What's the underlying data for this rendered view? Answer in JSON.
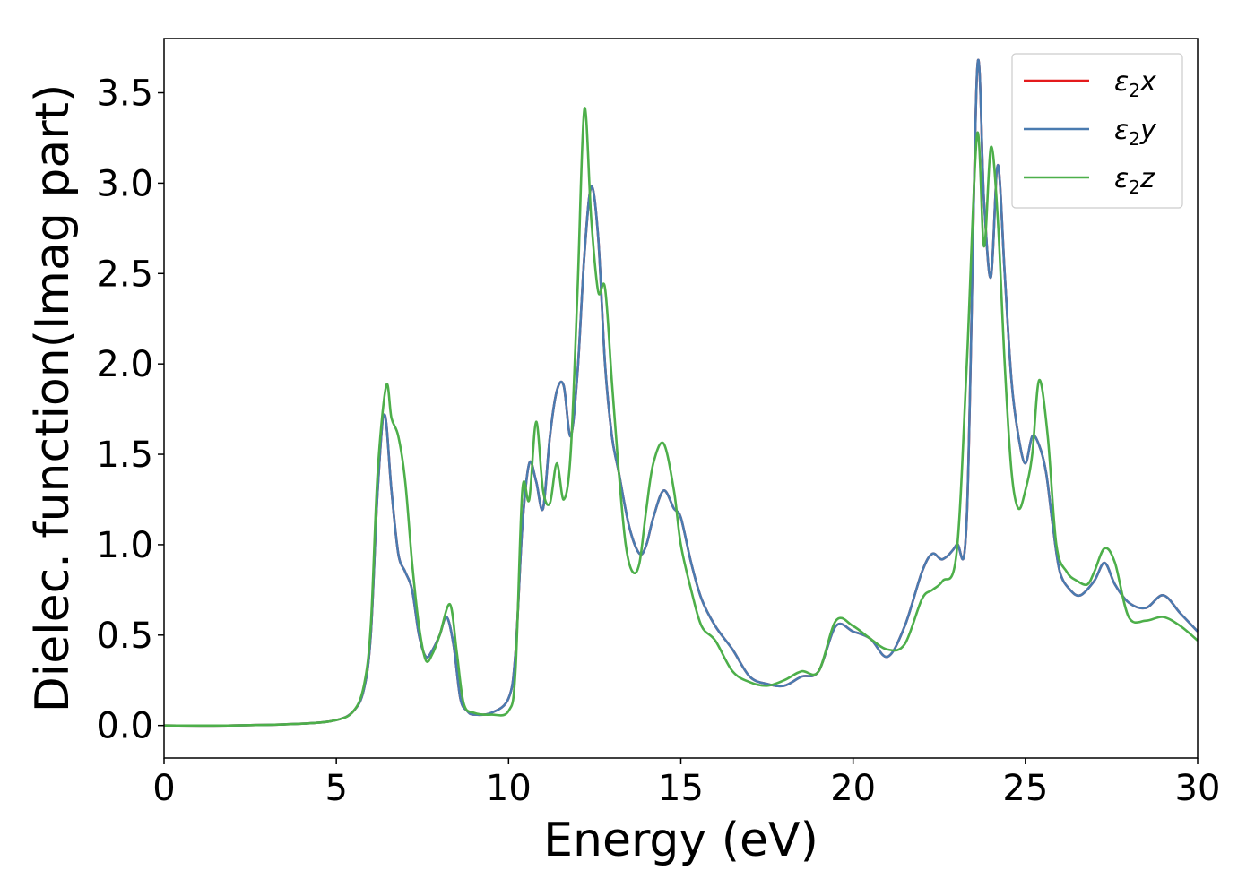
{
  "chart_data": {
    "type": "line",
    "xlabel": "Energy (eV)",
    "ylabel": "Dielec. function(Imag part)",
    "xlim": [
      0,
      30
    ],
    "ylim": [
      -0.18,
      3.8
    ],
    "xticks": [
      0,
      5,
      10,
      15,
      20,
      25,
      30
    ],
    "xtick_labels": [
      "0",
      "5",
      "10",
      "15",
      "20",
      "25",
      "30"
    ],
    "yticks": [
      0.0,
      0.5,
      1.0,
      1.5,
      2.0,
      2.5,
      3.0,
      3.5
    ],
    "ytick_labels": [
      "0.0",
      "0.5",
      "1.0",
      "1.5",
      "2.0",
      "2.5",
      "3.0",
      "3.5"
    ],
    "grid": false,
    "legend_position": "top-right",
    "series": [
      {
        "name": "ε2x",
        "symbol": "ε",
        "subscript": "2",
        "suffix": "x",
        "color": "#e41a1c",
        "x": [
          0,
          2,
          4,
          5,
          5.5,
          5.8,
          6.0,
          6.2,
          6.4,
          6.6,
          6.8,
          7.0,
          7.2,
          7.4,
          7.6,
          7.8,
          8.0,
          8.2,
          8.4,
          8.6,
          8.8,
          9.0,
          9.5,
          10.0,
          10.2,
          10.4,
          10.6,
          10.8,
          11.0,
          11.2,
          11.4,
          11.6,
          11.8,
          12.0,
          12.2,
          12.4,
          12.6,
          12.8,
          13.0,
          13.2,
          13.5,
          13.8,
          14.0,
          14.2,
          14.5,
          14.8,
          15.0,
          15.3,
          15.6,
          16.0,
          16.5,
          17.0,
          17.5,
          18.0,
          18.5,
          19.0,
          19.5,
          20.0,
          20.5,
          21.0,
          21.5,
          22.0,
          22.3,
          22.6,
          23.0,
          23.3,
          23.6,
          23.8,
          24.0,
          24.2,
          24.4,
          24.6,
          24.8,
          25.0,
          25.2,
          25.4,
          25.6,
          25.8,
          26.0,
          26.3,
          26.6,
          27.0,
          27.3,
          27.6,
          28.0,
          28.5,
          29.0,
          29.5,
          30.0
        ],
        "values": [
          0.0,
          0.0,
          0.01,
          0.03,
          0.08,
          0.2,
          0.5,
          1.3,
          1.72,
          1.3,
          0.95,
          0.85,
          0.75,
          0.5,
          0.38,
          0.42,
          0.5,
          0.6,
          0.45,
          0.15,
          0.08,
          0.06,
          0.07,
          0.15,
          0.4,
          1.1,
          1.45,
          1.35,
          1.2,
          1.6,
          1.85,
          1.88,
          1.6,
          1.95,
          2.6,
          2.98,
          2.7,
          2.0,
          1.6,
          1.4,
          1.1,
          0.95,
          1.0,
          1.15,
          1.3,
          1.2,
          1.15,
          0.9,
          0.7,
          0.55,
          0.42,
          0.27,
          0.23,
          0.22,
          0.27,
          0.3,
          0.55,
          0.52,
          0.48,
          0.38,
          0.55,
          0.85,
          0.95,
          0.92,
          1.0,
          1.15,
          3.62,
          2.9,
          2.48,
          3.1,
          2.5,
          1.9,
          1.6,
          1.45,
          1.6,
          1.55,
          1.4,
          1.1,
          0.85,
          0.75,
          0.72,
          0.8,
          0.9,
          0.78,
          0.68,
          0.65,
          0.72,
          0.62,
          0.52
        ]
      },
      {
        "name": "ε2y",
        "symbol": "ε",
        "subscript": "2",
        "suffix": "y",
        "color": "#4a7bb0",
        "x": [
          0,
          2,
          4,
          5,
          5.5,
          5.8,
          6.0,
          6.2,
          6.4,
          6.6,
          6.8,
          7.0,
          7.2,
          7.4,
          7.6,
          7.8,
          8.0,
          8.2,
          8.4,
          8.6,
          8.8,
          9.0,
          9.5,
          10.0,
          10.2,
          10.4,
          10.6,
          10.8,
          11.0,
          11.2,
          11.4,
          11.6,
          11.8,
          12.0,
          12.2,
          12.4,
          12.6,
          12.8,
          13.0,
          13.2,
          13.5,
          13.8,
          14.0,
          14.2,
          14.5,
          14.8,
          15.0,
          15.3,
          15.6,
          16.0,
          16.5,
          17.0,
          17.5,
          18.0,
          18.5,
          19.0,
          19.5,
          20.0,
          20.5,
          21.0,
          21.5,
          22.0,
          22.3,
          22.6,
          23.0,
          23.3,
          23.6,
          23.8,
          24.0,
          24.2,
          24.4,
          24.6,
          24.8,
          25.0,
          25.2,
          25.4,
          25.6,
          25.8,
          26.0,
          26.3,
          26.6,
          27.0,
          27.3,
          27.6,
          28.0,
          28.5,
          29.0,
          29.5,
          30.0
        ],
        "values": [
          0.0,
          0.0,
          0.01,
          0.03,
          0.08,
          0.2,
          0.5,
          1.3,
          1.72,
          1.3,
          0.95,
          0.85,
          0.75,
          0.5,
          0.38,
          0.42,
          0.5,
          0.6,
          0.45,
          0.15,
          0.08,
          0.06,
          0.07,
          0.15,
          0.4,
          1.1,
          1.45,
          1.35,
          1.2,
          1.6,
          1.85,
          1.88,
          1.6,
          1.95,
          2.6,
          2.98,
          2.7,
          2.0,
          1.6,
          1.4,
          1.1,
          0.95,
          1.0,
          1.15,
          1.3,
          1.2,
          1.15,
          0.9,
          0.7,
          0.55,
          0.42,
          0.27,
          0.23,
          0.22,
          0.27,
          0.3,
          0.55,
          0.52,
          0.48,
          0.38,
          0.55,
          0.85,
          0.95,
          0.92,
          1.0,
          1.15,
          3.62,
          2.9,
          2.48,
          3.1,
          2.5,
          1.9,
          1.6,
          1.45,
          1.6,
          1.55,
          1.4,
          1.1,
          0.85,
          0.75,
          0.72,
          0.8,
          0.9,
          0.78,
          0.68,
          0.65,
          0.72,
          0.62,
          0.52
        ]
      },
      {
        "name": "ε2z",
        "symbol": "ε",
        "subscript": "2",
        "suffix": "z",
        "color": "#4daf4a",
        "x": [
          0,
          2,
          4,
          5,
          5.5,
          5.8,
          6.0,
          6.2,
          6.45,
          6.6,
          6.8,
          7.0,
          7.2,
          7.4,
          7.6,
          7.8,
          8.0,
          8.3,
          8.5,
          8.7,
          9.0,
          9.5,
          10.0,
          10.2,
          10.4,
          10.6,
          10.8,
          11.0,
          11.2,
          11.4,
          11.6,
          11.8,
          12.0,
          12.2,
          12.4,
          12.6,
          12.8,
          13.0,
          13.2,
          13.4,
          13.6,
          13.8,
          14.0,
          14.2,
          14.5,
          14.8,
          15.0,
          15.3,
          15.6,
          16.0,
          16.5,
          17.0,
          17.5,
          18.0,
          18.5,
          19.0,
          19.5,
          20.0,
          20.5,
          21.0,
          21.5,
          22.0,
          22.3,
          22.6,
          23.0,
          23.3,
          23.6,
          23.8,
          24.0,
          24.2,
          24.4,
          24.6,
          24.8,
          25.0,
          25.2,
          25.4,
          25.65,
          25.9,
          26.2,
          26.5,
          26.8,
          27.0,
          27.3,
          27.6,
          28.0,
          28.5,
          29.0,
          29.5,
          30.0
        ],
        "values": [
          0.0,
          0.0,
          0.01,
          0.03,
          0.08,
          0.22,
          0.55,
          1.4,
          1.88,
          1.7,
          1.6,
          1.35,
          0.9,
          0.55,
          0.36,
          0.4,
          0.5,
          0.67,
          0.4,
          0.12,
          0.07,
          0.06,
          0.08,
          0.3,
          1.3,
          1.25,
          1.68,
          1.3,
          1.23,
          1.45,
          1.25,
          1.5,
          2.4,
          3.41,
          2.8,
          2.4,
          2.42,
          1.9,
          1.4,
          1.0,
          0.85,
          0.9,
          1.2,
          1.45,
          1.56,
          1.3,
          1.0,
          0.75,
          0.55,
          0.47,
          0.3,
          0.24,
          0.22,
          0.25,
          0.3,
          0.3,
          0.58,
          0.55,
          0.48,
          0.42,
          0.45,
          0.7,
          0.75,
          0.8,
          0.95,
          2.0,
          3.27,
          2.65,
          3.2,
          2.8,
          2.0,
          1.4,
          1.2,
          1.3,
          1.5,
          1.91,
          1.6,
          1.0,
          0.85,
          0.8,
          0.78,
          0.85,
          0.98,
          0.9,
          0.6,
          0.58,
          0.6,
          0.55,
          0.47
        ]
      }
    ]
  }
}
